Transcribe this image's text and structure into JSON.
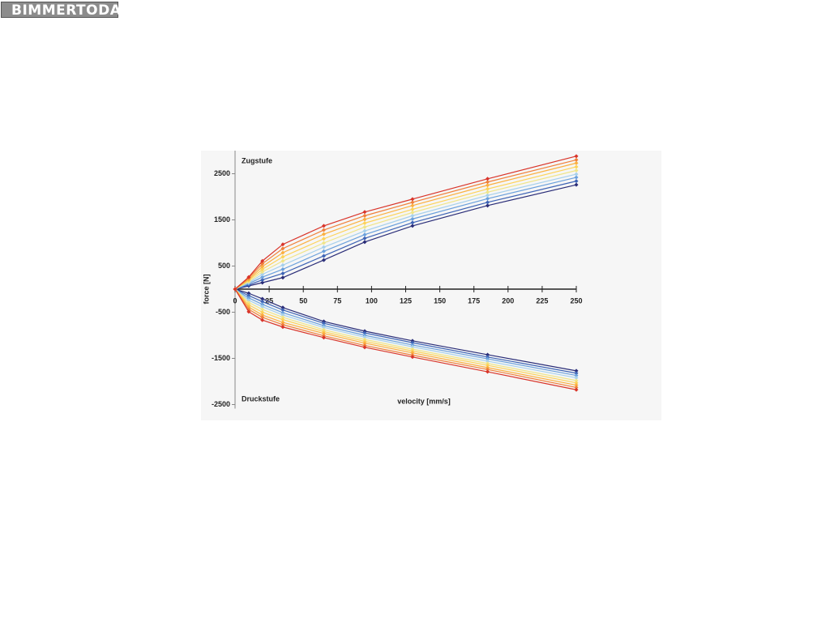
{
  "header": {
    "logo": "BIMMERTODAY"
  },
  "chart_data": {
    "type": "line",
    "annotations": {
      "top": "Zugstufe",
      "bottom": "Druckstufe"
    },
    "xlabel": "velocity [mm/s]",
    "ylabel": "force [N]",
    "x": [
      0,
      10,
      20,
      35,
      65,
      95,
      130,
      185,
      250
    ],
    "xlim": [
      0,
      250
    ],
    "xticks": [
      0,
      25,
      50,
      75,
      100,
      125,
      150,
      175,
      200,
      225,
      250
    ],
    "ylim": [
      -2500,
      3000
    ],
    "yticks": [
      -2500,
      -1500,
      -500,
      500,
      1500,
      2500
    ],
    "series": [
      {
        "color": "#2a2d78",
        "values": [
          0,
          70,
          140,
          250,
          630,
          1020,
          1370,
          1810,
          2260
        ]
      },
      {
        "color": "#3d63b5",
        "values": [
          0,
          90,
          200,
          340,
          720,
          1100,
          1440,
          1880,
          2340
        ]
      },
      {
        "color": "#6aa0dc",
        "values": [
          0,
          120,
          260,
          430,
          820,
          1180,
          1520,
          1960,
          2420
        ]
      },
      {
        "color": "#a6d0ec",
        "values": [
          0,
          140,
          320,
          520,
          910,
          1260,
          1590,
          2030,
          2490
        ]
      },
      {
        "color": "#efe58a",
        "values": [
          0,
          165,
          375,
          610,
          1000,
          1345,
          1660,
          2100,
          2570
        ]
      },
      {
        "color": "#fdd35a",
        "values": [
          0,
          190,
          430,
          700,
          1090,
          1430,
          1730,
          2170,
          2650
        ]
      },
      {
        "color": "#fbb040",
        "values": [
          0,
          210,
          490,
          790,
          1190,
          1510,
          1810,
          2250,
          2730
        ]
      },
      {
        "color": "#f0803a",
        "values": [
          0,
          240,
          550,
          880,
          1280,
          1590,
          1880,
          2320,
          2800
        ]
      },
      {
        "color": "#d9352a",
        "values": [
          0,
          260,
          610,
          970,
          1370,
          1670,
          1950,
          2390,
          2880
        ]
      },
      {
        "color": "#2a2d78",
        "values": [
          0,
          -90,
          -210,
          -400,
          -700,
          -910,
          -1120,
          -1420,
          -1770
        ]
      },
      {
        "color": "#3d63b5",
        "values": [
          0,
          -140,
          -270,
          -450,
          -740,
          -950,
          -1160,
          -1470,
          -1820
        ]
      },
      {
        "color": "#6aa0dc",
        "values": [
          0,
          -190,
          -330,
          -510,
          -790,
          -1000,
          -1210,
          -1510,
          -1870
        ]
      },
      {
        "color": "#a6d0ec",
        "values": [
          0,
          -240,
          -380,
          -560,
          -830,
          -1040,
          -1250,
          -1560,
          -1920
        ]
      },
      {
        "color": "#efe58a",
        "values": [
          0,
          -290,
          -440,
          -610,
          -880,
          -1090,
          -1300,
          -1610,
          -1980
        ]
      },
      {
        "color": "#fdd35a",
        "values": [
          0,
          -340,
          -500,
          -660,
          -920,
          -1130,
          -1340,
          -1650,
          -2030
        ]
      },
      {
        "color": "#fbb040",
        "values": [
          0,
          -390,
          -560,
          -720,
          -960,
          -1170,
          -1380,
          -1700,
          -2080
        ]
      },
      {
        "color": "#f0803a",
        "values": [
          0,
          -440,
          -610,
          -770,
          -1010,
          -1220,
          -1430,
          -1740,
          -2130
        ]
      },
      {
        "color": "#d9352a",
        "values": [
          0,
          -490,
          -670,
          -820,
          -1050,
          -1260,
          -1470,
          -1790,
          -2180
        ]
      }
    ]
  }
}
